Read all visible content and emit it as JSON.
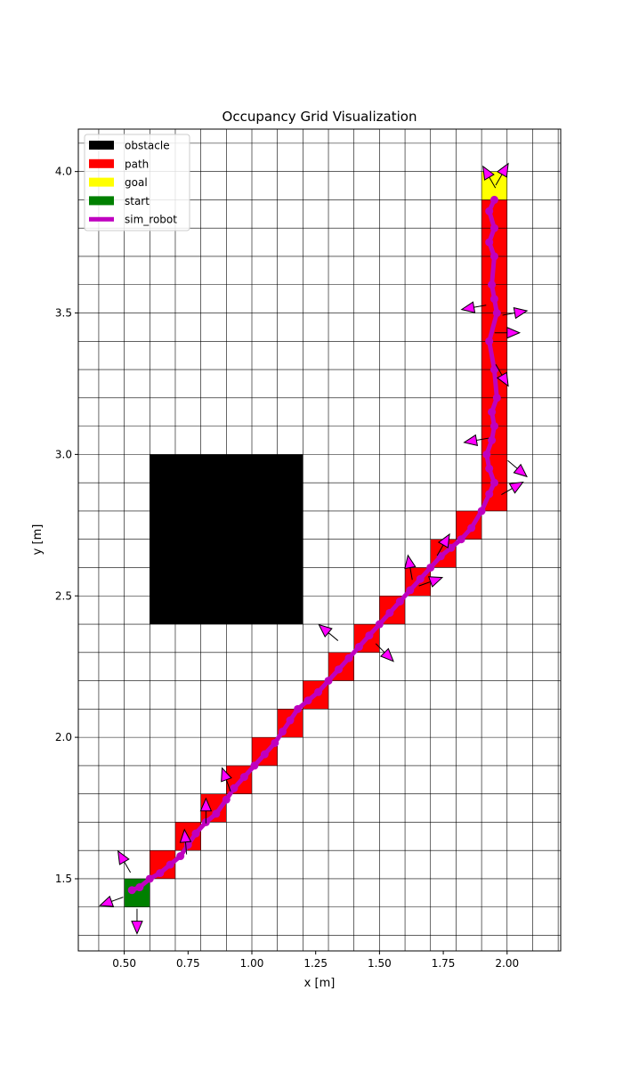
{
  "chart_data": {
    "type": "scatter",
    "title": "Occupancy Grid Visualization",
    "xlabel": "x [m]",
    "ylabel": "y [m]",
    "xlim": [
      0.32,
      2.21
    ],
    "ylim": [
      1.245,
      4.15
    ],
    "grid": true,
    "legend_position": "top-left",
    "cell_size": 0.1,
    "x_ticks": [
      {
        "value": 0.5,
        "label": "0.50"
      },
      {
        "value": 0.75,
        "label": "0.75"
      },
      {
        "value": 1.0,
        "label": "1.00"
      },
      {
        "value": 1.25,
        "label": "1.25"
      },
      {
        "value": 1.5,
        "label": "1.50"
      },
      {
        "value": 1.75,
        "label": "1.75"
      },
      {
        "value": 2.0,
        "label": "2.00"
      }
    ],
    "y_ticks": [
      {
        "value": 1.5,
        "label": "1.5"
      },
      {
        "value": 2.0,
        "label": "2.0"
      },
      {
        "value": 2.5,
        "label": "2.5"
      },
      {
        "value": 3.0,
        "label": "3.0"
      },
      {
        "value": 3.5,
        "label": "3.5"
      },
      {
        "value": 4.0,
        "label": "4.0"
      }
    ],
    "legend": [
      {
        "label": "obstacle",
        "color": "#000000",
        "kind": "patch"
      },
      {
        "label": "path",
        "color": "#ff0000",
        "kind": "patch"
      },
      {
        "label": "goal",
        "color": "#ffff00",
        "kind": "patch"
      },
      {
        "label": "start",
        "color": "#008000",
        "kind": "patch"
      },
      {
        "label": "sim_robot",
        "color": "#bf00bf",
        "kind": "line"
      }
    ],
    "obstacle": {
      "x0": 0.6,
      "y0": 2.4,
      "x1": 1.2,
      "y1": 3.0,
      "color": "#000000"
    },
    "start_cells": [
      [
        0.5,
        1.4
      ]
    ],
    "goal_cells": [
      [
        1.9,
        3.9
      ]
    ],
    "path_cells": [
      [
        0.6,
        1.5
      ],
      [
        0.7,
        1.6
      ],
      [
        0.8,
        1.7
      ],
      [
        0.9,
        1.8
      ],
      [
        1.0,
        1.9
      ],
      [
        1.1,
        2.0
      ],
      [
        1.2,
        2.1
      ],
      [
        1.3,
        2.2
      ],
      [
        1.4,
        2.3
      ],
      [
        1.5,
        2.4
      ],
      [
        1.6,
        2.5
      ],
      [
        1.7,
        2.6
      ],
      [
        1.8,
        2.7
      ],
      [
        1.9,
        2.8
      ],
      [
        1.9,
        2.9
      ],
      [
        1.9,
        3.0
      ],
      [
        1.9,
        3.1
      ],
      [
        1.9,
        3.2
      ],
      [
        1.9,
        3.3
      ],
      [
        1.9,
        3.4
      ],
      [
        1.9,
        3.5
      ],
      [
        1.9,
        3.6
      ],
      [
        1.9,
        3.7
      ],
      [
        1.9,
        3.8
      ]
    ],
    "robot_trajectory": [
      [
        0.53,
        1.46
      ],
      [
        0.56,
        1.47
      ],
      [
        0.6,
        1.5
      ],
      [
        0.64,
        1.52
      ],
      [
        0.68,
        1.55
      ],
      [
        0.72,
        1.58
      ],
      [
        0.75,
        1.62
      ],
      [
        0.78,
        1.66
      ],
      [
        0.82,
        1.7
      ],
      [
        0.86,
        1.73
      ],
      [
        0.9,
        1.78
      ],
      [
        0.93,
        1.82
      ],
      [
        0.97,
        1.86
      ],
      [
        1.01,
        1.9
      ],
      [
        1.05,
        1.94
      ],
      [
        1.09,
        1.98
      ],
      [
        1.12,
        2.02
      ],
      [
        1.15,
        2.06
      ],
      [
        1.18,
        2.1
      ],
      [
        1.22,
        2.13
      ],
      [
        1.26,
        2.16
      ],
      [
        1.3,
        2.2
      ],
      [
        1.34,
        2.24
      ],
      [
        1.38,
        2.28
      ],
      [
        1.42,
        2.32
      ],
      [
        1.46,
        2.36
      ],
      [
        1.5,
        2.4
      ],
      [
        1.54,
        2.44
      ],
      [
        1.58,
        2.48
      ],
      [
        1.62,
        2.52
      ],
      [
        1.66,
        2.56
      ],
      [
        1.7,
        2.6
      ],
      [
        1.74,
        2.64
      ],
      [
        1.78,
        2.67
      ],
      [
        1.82,
        2.7
      ],
      [
        1.86,
        2.74
      ],
      [
        1.9,
        2.8
      ],
      [
        1.93,
        2.86
      ],
      [
        1.95,
        2.9
      ],
      [
        1.93,
        2.95
      ],
      [
        1.92,
        3.0
      ],
      [
        1.94,
        3.05
      ],
      [
        1.95,
        3.1
      ],
      [
        1.94,
        3.15
      ],
      [
        1.96,
        3.2
      ],
      [
        1.95,
        3.3
      ],
      [
        1.93,
        3.4
      ],
      [
        1.96,
        3.5
      ],
      [
        1.95,
        3.55
      ],
      [
        1.94,
        3.6
      ],
      [
        1.95,
        3.7
      ],
      [
        1.93,
        3.75
      ],
      [
        1.95,
        3.8
      ],
      [
        1.93,
        3.86
      ],
      [
        1.95,
        3.9
      ]
    ],
    "robot_headings_deg": [
      [
        0.45,
        1.42,
        200
      ],
      [
        0.55,
        1.35,
        270
      ],
      [
        0.5,
        1.56,
        120
      ],
      [
        0.74,
        1.63,
        95
      ],
      [
        0.82,
        1.74,
        90
      ],
      [
        0.9,
        1.85,
        110
      ],
      [
        1.3,
        2.37,
        140
      ],
      [
        1.52,
        2.3,
        -45
      ],
      [
        1.62,
        2.6,
        100
      ],
      [
        1.7,
        2.55,
        20
      ],
      [
        1.75,
        2.68,
        60
      ],
      [
        2.04,
        2.95,
        -40
      ],
      [
        2.02,
        2.88,
        30
      ],
      [
        1.87,
        3.52,
        190
      ],
      [
        2.03,
        3.5,
        10
      ],
      [
        2.0,
        3.43,
        0
      ],
      [
        1.98,
        3.99,
        60
      ],
      [
        1.93,
        3.98,
        120
      ],
      [
        1.98,
        3.28,
        -60
      ],
      [
        1.88,
        3.05,
        190
      ]
    ]
  }
}
